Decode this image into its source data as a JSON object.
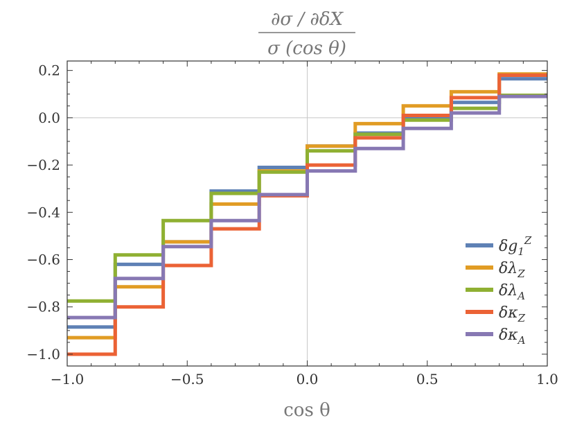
{
  "chart_data": {
    "type": "line",
    "step": true,
    "title": {
      "numerator": "∂σ / ∂δX",
      "denominator": "σ (cos θ)"
    },
    "xlabel": "cos θ",
    "ylabel": "",
    "xlim": [
      -1.0,
      1.0
    ],
    "ylim": [
      -1.05,
      0.24
    ],
    "x_ticks": [
      -1.0,
      -0.5,
      0.0,
      0.5,
      1.0
    ],
    "x_tick_labels": [
      "−1.0",
      "−0.5",
      "0.0",
      "0.5",
      "1.0"
    ],
    "y_ticks": [
      -1.0,
      -0.8,
      -0.6,
      -0.4,
      -0.2,
      0.0,
      0.2
    ],
    "y_tick_labels": [
      "−1.0",
      "−0.8",
      "−0.6",
      "−0.4",
      "−0.2",
      "0.0",
      "0.2"
    ],
    "bin_edges": [
      -1.0,
      -0.8,
      -0.6,
      -0.4,
      -0.2,
      0.0,
      0.2,
      0.4,
      0.6,
      0.8,
      1.0
    ],
    "grid": false,
    "zero_lines": true,
    "legend_position": "bottom-right",
    "series": [
      {
        "name": "δg1Z",
        "label_main": "δg",
        "label_sub": "1",
        "label_sup": "Z",
        "color": "#5e81b5",
        "values": [
          -0.885,
          -0.62,
          -0.525,
          -0.31,
          -0.21,
          -0.12,
          -0.065,
          0.0,
          0.065,
          0.165
        ]
      },
      {
        "name": "δλZ",
        "label_main": "δλ",
        "label_sub": "Z",
        "label_sup": "",
        "color": "#e19c24",
        "values": [
          -0.93,
          -0.715,
          -0.525,
          -0.365,
          -0.225,
          -0.12,
          -0.025,
          0.05,
          0.11,
          0.185
        ]
      },
      {
        "name": "δλA",
        "label_main": "δλ",
        "label_sub": "A",
        "label_sup": "",
        "color": "#8fb032",
        "values": [
          -0.775,
          -0.58,
          -0.435,
          -0.32,
          -0.23,
          -0.14,
          -0.07,
          -0.01,
          0.04,
          0.095
        ]
      },
      {
        "name": "δκZ",
        "label_main": "δκ",
        "label_sub": "Z",
        "label_sup": "",
        "color": "#eb6235",
        "values": [
          -1.0,
          -0.8,
          -0.625,
          -0.47,
          -0.33,
          -0.2,
          -0.085,
          0.01,
          0.085,
          0.18
        ]
      },
      {
        "name": "δκA",
        "label_main": "δκ",
        "label_sub": "A",
        "label_sup": "",
        "color": "#8778b3",
        "values": [
          -0.845,
          -0.68,
          -0.545,
          -0.435,
          -0.325,
          -0.225,
          -0.13,
          -0.045,
          0.02,
          0.09
        ]
      }
    ]
  }
}
